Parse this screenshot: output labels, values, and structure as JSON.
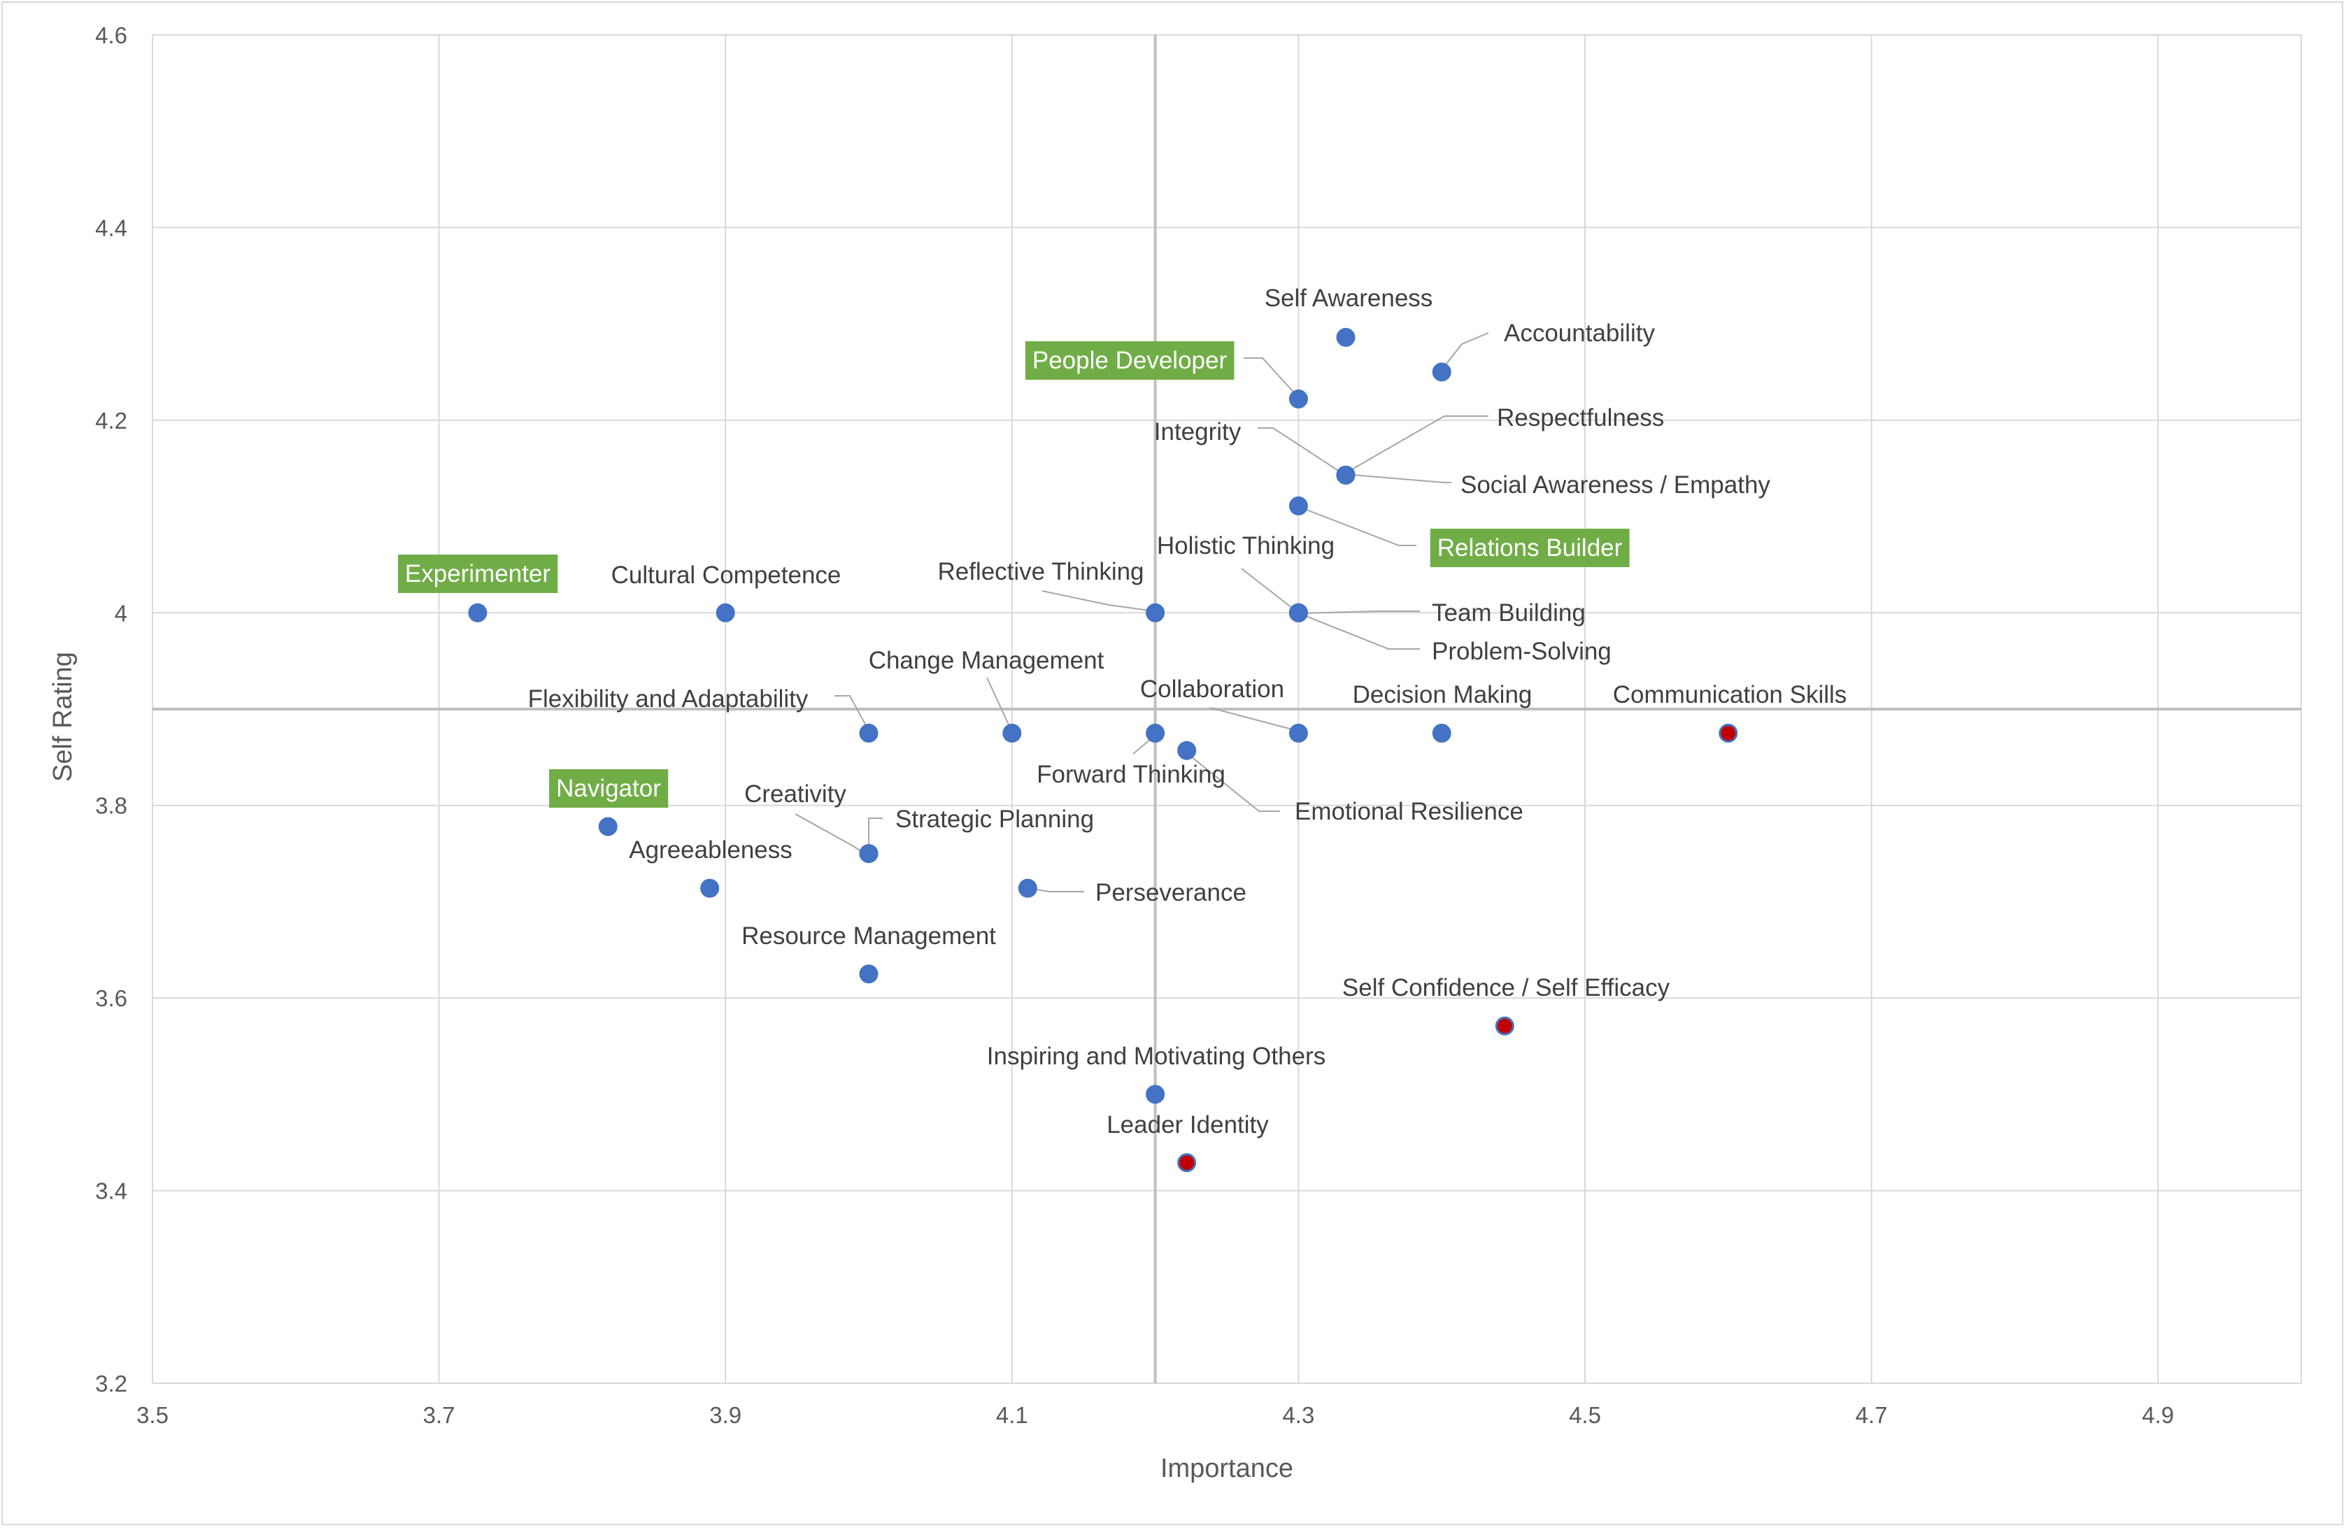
{
  "chart_data": {
    "type": "scatter",
    "title": "",
    "xlabel": "Importance",
    "ylabel": "Self Rating",
    "xlim": [
      3.5,
      5.0
    ],
    "ylim": [
      3.2,
      4.6
    ],
    "x_ticks": [
      "3.5",
      "3.7",
      "3.9",
      "4.1",
      "4.3",
      "4.5",
      "4.7",
      "4.9"
    ],
    "y_ticks": [
      "3.2",
      "3.4",
      "3.6",
      "3.8",
      "4",
      "4.2",
      "4.4",
      "4.6"
    ],
    "grid": true,
    "reference_lines": {
      "x": 4.2,
      "y": 3.9
    },
    "colors": {
      "point": "#4472c4",
      "highlight": "#c00000",
      "box": "#70ad47",
      "grid": "#d9d9d9",
      "ref": "#bfbfbf"
    },
    "points": [
      {
        "label": "Self Awareness",
        "x": 4.333,
        "y": 4.286,
        "highlight": false
      },
      {
        "label": "Accountability",
        "x": 4.4,
        "y": 4.25,
        "highlight": false
      },
      {
        "label": "People Developer",
        "x": 4.3,
        "y": 4.222,
        "highlight": false,
        "boxed": true
      },
      {
        "label": "Integrity",
        "x": 4.333,
        "y": 4.143,
        "highlight": false
      },
      {
        "label": "Respectfulness",
        "x": 4.333,
        "y": 4.143,
        "highlight": false
      },
      {
        "label": "Social Awareness / Empathy",
        "x": 4.333,
        "y": 4.143,
        "highlight": false
      },
      {
        "label": "Relations Builder",
        "x": 4.3,
        "y": 4.111,
        "highlight": false,
        "boxed": true
      },
      {
        "label": "Experimenter",
        "x": 3.727,
        "y": 4.0,
        "highlight": false,
        "boxed": true
      },
      {
        "label": "Cultural Competence",
        "x": 3.9,
        "y": 4.0,
        "highlight": false
      },
      {
        "label": "Reflective Thinking",
        "x": 4.2,
        "y": 4.0,
        "highlight": false
      },
      {
        "label": "Holistic Thinking",
        "x": 4.3,
        "y": 4.0,
        "highlight": false
      },
      {
        "label": "Team Building",
        "x": 4.3,
        "y": 4.0,
        "highlight": false
      },
      {
        "label": "Problem-Solving",
        "x": 4.3,
        "y": 4.0,
        "highlight": false
      },
      {
        "label": "Change Management",
        "x": 4.1,
        "y": 3.875,
        "highlight": false
      },
      {
        "label": "Flexibility and Adaptability",
        "x": 4.0,
        "y": 3.875,
        "highlight": false
      },
      {
        "label": "Collaboration",
        "x": 4.3,
        "y": 3.875,
        "highlight": false
      },
      {
        "label": "Decision Making",
        "x": 4.4,
        "y": 3.875,
        "highlight": false
      },
      {
        "label": "Communication Skills",
        "x": 4.6,
        "y": 3.875,
        "highlight": true
      },
      {
        "label": "Forward Thinking",
        "x": 4.2,
        "y": 3.875,
        "highlight": false
      },
      {
        "label": "Emotional Resilience",
        "x": 4.222,
        "y": 3.857,
        "highlight": false
      },
      {
        "label": "Navigator",
        "x": 3.818,
        "y": 3.778,
        "highlight": false,
        "boxed": true
      },
      {
        "label": "Creativity",
        "x": 4.0,
        "y": 3.75,
        "highlight": false
      },
      {
        "label": "Strategic Planning",
        "x": 4.0,
        "y": 3.75,
        "highlight": false
      },
      {
        "label": "Agreeableness",
        "x": 3.889,
        "y": 3.714,
        "highlight": false
      },
      {
        "label": "Perseverance",
        "x": 4.111,
        "y": 3.714,
        "highlight": false
      },
      {
        "label": "Resource Management",
        "x": 4.0,
        "y": 3.625,
        "highlight": false
      },
      {
        "label": "Self Confidence / Self Efficacy",
        "x": 4.444,
        "y": 3.571,
        "highlight": true
      },
      {
        "label": "Inspiring and Motivating Others",
        "x": 4.2,
        "y": 3.5,
        "highlight": false
      },
      {
        "label": "Leader Identity",
        "x": 4.222,
        "y": 3.429,
        "highlight": true
      }
    ]
  }
}
